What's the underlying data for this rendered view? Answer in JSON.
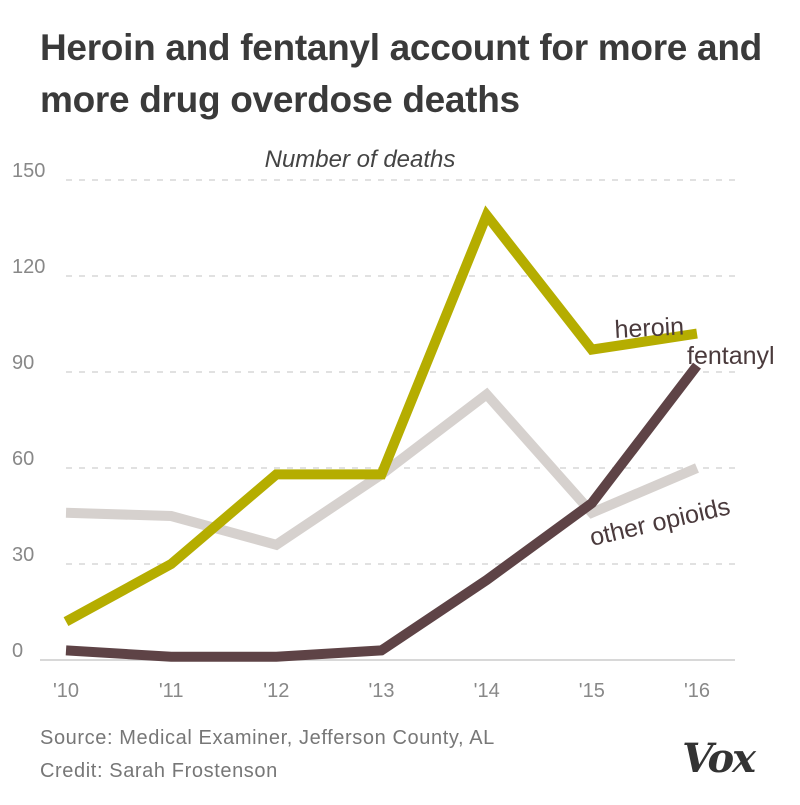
{
  "title": "Heroin and fentanyl account for more and more drug overdose deaths",
  "source": "Source: Medical Examiner, Jefferson County, AL",
  "credit": "Credit: Sarah Frostenson",
  "logo": "Vox",
  "chart_data": {
    "type": "line",
    "ylabel": "Number of deaths",
    "xlabel": "",
    "categories": [
      "'10",
      "'11",
      "'12",
      "'13",
      "'14",
      "'15",
      "'16"
    ],
    "ylim": [
      0,
      150
    ],
    "yticks": [
      "0",
      "30",
      "60",
      "90",
      "120",
      "150"
    ],
    "ytick_values": [
      0,
      30,
      60,
      90,
      120,
      150
    ],
    "grid": true,
    "series": [
      {
        "name": "other opioids",
        "color": "#d6d1ce",
        "values": [
          46,
          45,
          36,
          58,
          83,
          46,
          60
        ]
      },
      {
        "name": "fentanyl",
        "color": "#5e4346",
        "values": [
          3,
          1,
          1,
          3,
          25,
          49,
          92
        ]
      },
      {
        "name": "heroin",
        "color": "#b5ad00",
        "values": [
          12,
          30,
          58,
          58,
          139,
          97,
          102
        ]
      }
    ]
  }
}
